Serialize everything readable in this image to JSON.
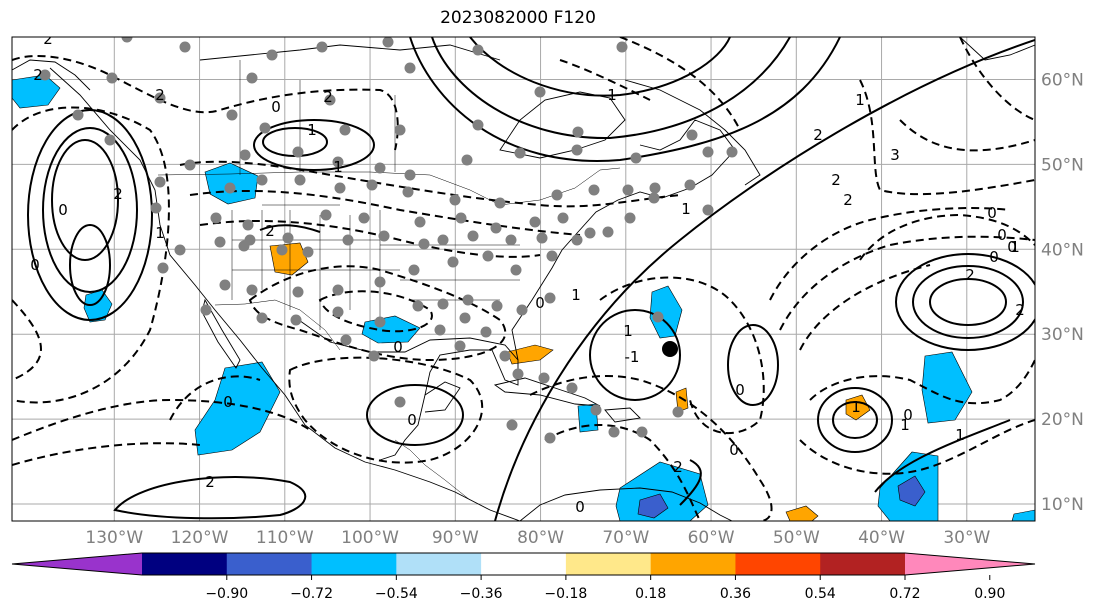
{
  "title": "2023082000 F120",
  "map": {
    "projection": "PlateCarree",
    "lon_range": [
      -142,
      -22
    ],
    "lat_range": [
      8,
      65
    ],
    "lon_ticks": [
      "130°W",
      "120°W",
      "110°W",
      "100°W",
      "90°W",
      "80°W",
      "70°W",
      "60°W",
      "50°W",
      "40°W",
      "30°W"
    ],
    "lat_ticks": [
      "60°N",
      "50°N",
      "40°N",
      "30°N",
      "20°N",
      "10°N"
    ],
    "grid": true
  },
  "contours": {
    "labels": [
      "2",
      "2",
      "2",
      "0",
      "1",
      "1",
      "2",
      "2",
      "0",
      "1",
      "0",
      "2",
      "0",
      "0",
      "0",
      "2",
      "0",
      "-1",
      "1",
      "0",
      "1",
      "1",
      "1",
      "2",
      "2",
      "0",
      "3",
      "2",
      "0",
      "0",
      "1",
      "2",
      "2",
      "1",
      "0",
      "1",
      "0",
      "2",
      "0",
      "1",
      "1",
      "0"
    ],
    "style": "solid positive, dashed negative"
  },
  "colorbar": {
    "tick_labels": [
      "−0.90",
      "−0.72",
      "−0.54",
      "−0.36",
      "−0.18",
      "0.18",
      "0.36",
      "0.54",
      "0.72",
      "0.90"
    ],
    "colors": [
      "#9933cc",
      "#000080",
      "#3a5fcd",
      "#00bfff",
      "#b0e0f8",
      "#ffffff",
      "#ffe88a",
      "#ffa500",
      "#ff4500",
      "#b22222",
      "#ff88bb"
    ],
    "extend": "both"
  },
  "markers": {
    "station_color": "#808080",
    "storm_center_color": "#000000"
  }
}
